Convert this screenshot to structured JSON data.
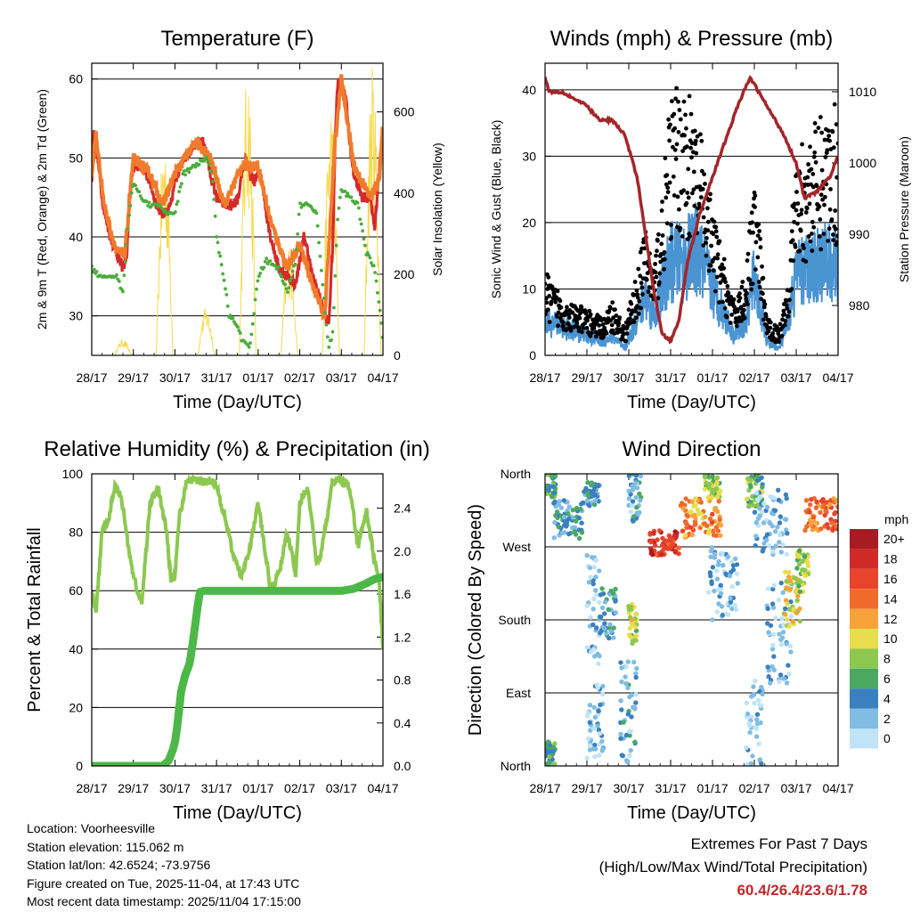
{
  "chart_data": [
    {
      "type": "line",
      "title": "Temperature (F)",
      "xlabel": "Time (Day/UTC)",
      "ylabel_left": "2m & 9m T (Red, Orange) & 2m Td (Green)",
      "ylabel_right": "Solar Insolation (Yellow)",
      "x_ticks": [
        "28/17",
        "29/17",
        "30/17",
        "31/17",
        "01/17",
        "02/17",
        "03/17",
        "04/17"
      ],
      "ylim": [
        25,
        62
      ],
      "y_ticks": [
        30,
        40,
        50,
        60
      ],
      "y2lim": [
        0,
        720
      ],
      "y2_ticks": [
        0,
        200,
        400,
        600
      ],
      "series": [
        {
          "name": "2m T",
          "color": "#d42a2a",
          "x": [
            0,
            0.05,
            0.1,
            0.25,
            0.35,
            0.45,
            0.6,
            0.75,
            0.85,
            0.9,
            1.0,
            1.2,
            1.4,
            1.55,
            1.7,
            1.8,
            1.9,
            2.0,
            2.2,
            2.4,
            2.55,
            2.7,
            2.85,
            3.0,
            3.2,
            3.4,
            3.55,
            3.6,
            3.7,
            3.8,
            3.9,
            4.0,
            4.1,
            4.2,
            4.3,
            4.5,
            4.7,
            4.9,
            5.0,
            5.1,
            5.2,
            5.3,
            5.5,
            5.6,
            5.7,
            5.8,
            5.85,
            5.9,
            6.0,
            6.1,
            6.2,
            6.3,
            6.5,
            6.7,
            6.8,
            6.9,
            7.0
          ],
          "values": [
            47,
            53,
            52,
            45,
            42,
            40,
            38,
            36,
            38,
            45,
            49,
            49,
            47,
            44,
            43,
            43,
            44,
            47,
            50,
            51,
            52,
            52,
            48,
            45,
            44,
            44,
            45,
            48,
            50,
            48,
            47,
            48,
            47,
            43,
            40,
            36,
            35,
            34,
            37,
            40,
            38,
            35,
            32,
            30,
            29,
            40,
            52,
            59,
            60,
            58,
            52,
            48,
            45,
            45,
            41,
            48,
            53
          ]
        },
        {
          "name": "9m T",
          "color": "#f07b2c",
          "x": [
            0,
            0.1,
            0.3,
            0.6,
            0.8,
            1.0,
            1.4,
            1.7,
            2.0,
            2.5,
            2.85,
            3.2,
            3.6,
            4.0,
            4.3,
            4.7,
            5.0,
            5.3,
            5.6,
            5.85,
            6.0,
            6.3,
            6.7,
            6.9,
            7.0
          ],
          "values": [
            48,
            53,
            44,
            38,
            38,
            50,
            48,
            44,
            48,
            52,
            50,
            44,
            49,
            49,
            42,
            36,
            39,
            34,
            30,
            52,
            60,
            49,
            45,
            47,
            54
          ]
        },
        {
          "name": "2m Td",
          "color": "#4aac3c",
          "x": [
            0,
            0.2,
            0.4,
            0.6,
            0.75,
            0.9,
            1.0,
            1.2,
            1.4,
            1.6,
            1.8,
            2.0,
            2.2,
            2.5,
            2.75,
            2.9,
            3.0,
            3.2,
            3.3,
            3.5,
            3.6,
            3.8,
            4.0,
            4.2,
            4.5,
            4.7,
            4.9,
            5.0,
            5.2,
            5.4,
            5.6,
            5.7,
            5.8,
            5.9,
            6.0,
            6.2,
            6.4,
            6.6,
            6.8,
            6.9,
            7.0
          ],
          "values": [
            36,
            35,
            35,
            35,
            33,
            43,
            47,
            45,
            44,
            44,
            43,
            43,
            48,
            49,
            50,
            48,
            40,
            34,
            30,
            29,
            27,
            26,
            35,
            37,
            36,
            33,
            37,
            44,
            44,
            43,
            31,
            26,
            28,
            42,
            46,
            45,
            44,
            38,
            36,
            32,
            27
          ]
        }
      ],
      "insolation": {
        "name": "Solar Insolation",
        "color": "#f7d94c",
        "days": [
          0,
          1,
          2,
          3,
          4,
          5,
          6
        ],
        "peaks": [
          40,
          560,
          120,
          720,
          280,
          640,
          720
        ]
      }
    },
    {
      "type": "scatter",
      "title": "Winds (mph) & Pressure (mb)",
      "xlabel": "Time (Day/UTC)",
      "ylabel_left": "Sonic Wind & Gust (Blue, Black)",
      "ylabel_right": "Station Pressure (Maroon)",
      "x_ticks": [
        "28/17",
        "29/17",
        "30/17",
        "31/17",
        "01/17",
        "02/17",
        "03/17",
        "04/17"
      ],
      "ylim": [
        0,
        44
      ],
      "y_ticks": [
        0,
        10,
        20,
        30,
        40
      ],
      "y2lim": [
        973,
        1014
      ],
      "y2_ticks": [
        980,
        990,
        1000,
        1010
      ],
      "series": [
        {
          "name": "Sonic Wind",
          "color": "#4a94d2",
          "x": [
            0,
            0.5,
            1.0,
            1.4,
            1.6,
            1.9,
            2.1,
            2.4,
            2.6,
            2.8,
            3.0,
            3.3,
            3.6,
            3.8,
            4.0,
            4.3,
            4.5,
            4.8,
            5.0,
            5.3,
            5.6,
            5.8,
            6.0,
            6.3,
            6.6,
            6.9,
            7.0
          ],
          "values": [
            5,
            4,
            3,
            2,
            3,
            1,
            4,
            9,
            6,
            10,
            14,
            14,
            16,
            13,
            10,
            6,
            3,
            5,
            12,
            2,
            1,
            5,
            12,
            13,
            14,
            14,
            12
          ]
        },
        {
          "name": "Gust",
          "color": "#000000",
          "x": [
            0,
            0.5,
            1.0,
            1.4,
            1.6,
            1.9,
            2.1,
            2.4,
            2.6,
            2.8,
            3.0,
            3.3,
            3.6,
            3.8,
            4.0,
            4.3,
            4.5,
            4.8,
            5.0,
            5.3,
            5.6,
            5.8,
            6.0,
            6.3,
            6.6,
            6.9,
            7.0
          ],
          "values": [
            9,
            6,
            5,
            4,
            6,
            3,
            7,
            14,
            10,
            18,
            28,
            30,
            26,
            22,
            16,
            10,
            6,
            9,
            20,
            4,
            3,
            9,
            22,
            24,
            26,
            28,
            26
          ]
        },
        {
          "name": "Station Pressure",
          "color": "#a3262a",
          "x": [
            0,
            0.1,
            0.4,
            0.7,
            1.0,
            1.3,
            1.6,
            1.9,
            2.2,
            2.4,
            2.6,
            2.8,
            3.0,
            3.2,
            3.4,
            3.7,
            4.0,
            4.3,
            4.6,
            4.9,
            5.0,
            5.2,
            5.4,
            5.7,
            6.0,
            6.2,
            6.5,
            6.8,
            7.0
          ],
          "values": [
            1012,
            1010,
            1010,
            1009,
            1008,
            1006,
            1006,
            1004,
            998,
            990,
            982,
            976,
            975,
            978,
            986,
            993,
            998,
            1003,
            1008,
            1012,
            1011,
            1009,
            1007,
            1004,
            1000,
            995,
            996,
            998,
            1001
          ]
        }
      ]
    },
    {
      "type": "line",
      "title": "Relative Humidity (%) & Precipitation (in)",
      "xlabel": "Time (Day/UTC)",
      "ylabel_left": "Percent & Total Rainfall",
      "x_ticks": [
        "28/17",
        "29/17",
        "30/17",
        "31/17",
        "01/17",
        "02/17",
        "03/17",
        "04/17"
      ],
      "ylim": [
        0,
        100
      ],
      "y_ticks": [
        0,
        20,
        40,
        60,
        80,
        100
      ],
      "y2lim": [
        0,
        2.72
      ],
      "y2_ticks": [
        "0.0",
        "0.4",
        "0.8",
        "1.2",
        "1.6",
        "2.0",
        "2.4"
      ],
      "series": [
        {
          "name": "Relative Humidity",
          "color": "#8cc850",
          "x": [
            0,
            0.1,
            0.25,
            0.4,
            0.55,
            0.7,
            0.85,
            1.0,
            1.2,
            1.4,
            1.6,
            1.8,
            1.9,
            2.0,
            2.1,
            2.3,
            2.5,
            2.7,
            2.9,
            3.0,
            3.2,
            3.4,
            3.6,
            3.8,
            4.0,
            4.3,
            4.5,
            4.7,
            4.9,
            5.0,
            5.2,
            5.4,
            5.5,
            5.6,
            5.8,
            6.0,
            6.2,
            6.4,
            6.6,
            6.8,
            6.9,
            7.0
          ],
          "values": [
            60,
            52,
            80,
            84,
            96,
            93,
            78,
            65,
            55,
            90,
            95,
            80,
            64,
            65,
            85,
            98,
            98,
            97,
            98,
            96,
            85,
            72,
            65,
            75,
            90,
            60,
            66,
            80,
            66,
            90,
            95,
            70,
            72,
            80,
            98,
            98,
            95,
            75,
            88,
            70,
            65,
            40
          ]
        },
        {
          "name": "Total Precipitation",
          "color": "#4cb848",
          "x": [
            0,
            0.5,
            1.0,
            1.5,
            1.7,
            1.85,
            1.95,
            2.0,
            2.05,
            2.15,
            2.25,
            2.35,
            2.45,
            2.55,
            2.6,
            2.7,
            3.0,
            4.0,
            5.0,
            6.0,
            6.3,
            6.6,
            6.8,
            7.0
          ],
          "values": [
            0,
            0,
            0,
            0,
            0,
            0.05,
            0.15,
            0.22,
            0.35,
            0.7,
            0.85,
            0.95,
            1.2,
            1.5,
            1.62,
            1.63,
            1.63,
            1.63,
            1.63,
            1.63,
            1.65,
            1.7,
            1.74,
            1.76
          ]
        }
      ]
    },
    {
      "type": "scatter",
      "title": "Wind Direction",
      "xlabel": "Time (Day/UTC)",
      "ylabel_left": "Direction (Colored By Speed)",
      "x_ticks": [
        "28/17",
        "29/17",
        "30/17",
        "31/17",
        "01/17",
        "02/17",
        "03/17",
        "04/17"
      ],
      "y_ticks": [
        "North",
        "East",
        "South",
        "West",
        "North"
      ],
      "ylim": [
        0,
        360
      ],
      "colorbar_title": "mph",
      "colorbar_labels": [
        "20+",
        "18",
        "16",
        "14",
        "12",
        "10",
        "8",
        "6",
        "4",
        "2",
        "0"
      ],
      "colorbar_colors": [
        "#a51c22",
        "#cf2a27",
        "#e8442b",
        "#f06a2c",
        "#f7a33a",
        "#e8dd4c",
        "#8cc850",
        "#4aa862",
        "#3a80c0",
        "#80bce4",
        "#bfe4f7"
      ],
      "clusters": [
        {
          "x": [
            0,
            0.25
          ],
          "dir": [
            0,
            30
          ],
          "speed": 5
        },
        {
          "x": [
            0,
            0.25
          ],
          "dir": [
            330,
            360
          ],
          "speed": 6
        },
        {
          "x": [
            0.2,
            0.9
          ],
          "dir": [
            280,
            330
          ],
          "speed": 4
        },
        {
          "x": [
            0.9,
            1.3
          ],
          "dir": [
            320,
            350
          ],
          "speed": 4
        },
        {
          "x": [
            1.0,
            1.4
          ],
          "dir": [
            0,
            100
          ],
          "speed": 2
        },
        {
          "x": [
            1.0,
            1.3
          ],
          "dir": [
            120,
            260
          ],
          "speed": 2
        },
        {
          "x": [
            1.3,
            1.7
          ],
          "dir": [
            150,
            220
          ],
          "speed": 4
        },
        {
          "x": [
            1.8,
            2.2
          ],
          "dir": [
            0,
            130
          ],
          "speed": 3
        },
        {
          "x": [
            2.0,
            2.2
          ],
          "dir": [
            150,
            200
          ],
          "speed": 9
        },
        {
          "x": [
            2.0,
            2.3
          ],
          "dir": [
            300,
            360
          ],
          "speed": 3
        },
        {
          "x": [
            2.5,
            3.2
          ],
          "dir": [
            260,
            290
          ],
          "speed": 17
        },
        {
          "x": [
            3.2,
            4.2
          ],
          "dir": [
            280,
            330
          ],
          "speed": 13
        },
        {
          "x": [
            3.8,
            4.2
          ],
          "dir": [
            330,
            360
          ],
          "speed": 8
        },
        {
          "x": [
            3.9,
            4.6
          ],
          "dir": [
            180,
            270
          ],
          "speed": 2
        },
        {
          "x": [
            4.8,
            5.2
          ],
          "dir": [
            0,
            110
          ],
          "speed": 2
        },
        {
          "x": [
            4.8,
            5.2
          ],
          "dir": [
            320,
            360
          ],
          "speed": 7
        },
        {
          "x": [
            5.0,
            5.8
          ],
          "dir": [
            260,
            340
          ],
          "speed": 2
        },
        {
          "x": [
            5.3,
            5.9
          ],
          "dir": [
            100,
            230
          ],
          "speed": 2
        },
        {
          "x": [
            5.7,
            6.1
          ],
          "dir": [
            170,
            240
          ],
          "speed": 10
        },
        {
          "x": [
            6.0,
            6.3
          ],
          "dir": [
            210,
            270
          ],
          "speed": 8
        },
        {
          "x": [
            6.2,
            7.0
          ],
          "dir": [
            290,
            330
          ],
          "speed": 14
        }
      ]
    }
  ],
  "station": {
    "location": "Location: Voorheesville",
    "elevation": "Station elevation: 115.062 m",
    "latlon": "Station lat/lon: 42.6524; -73.9756",
    "created": "Figure created on Tue, 2025-11-04, at 17:43 UTC",
    "latest": "Most recent data timestamp: 2025/11/04 17:15:00"
  },
  "extremes": {
    "title": "Extremes For Past 7 Days",
    "subtitle": "(High/Low/Max Wind/Total Precipitation)",
    "values": "60.4/26.4/23.6/1.78"
  }
}
